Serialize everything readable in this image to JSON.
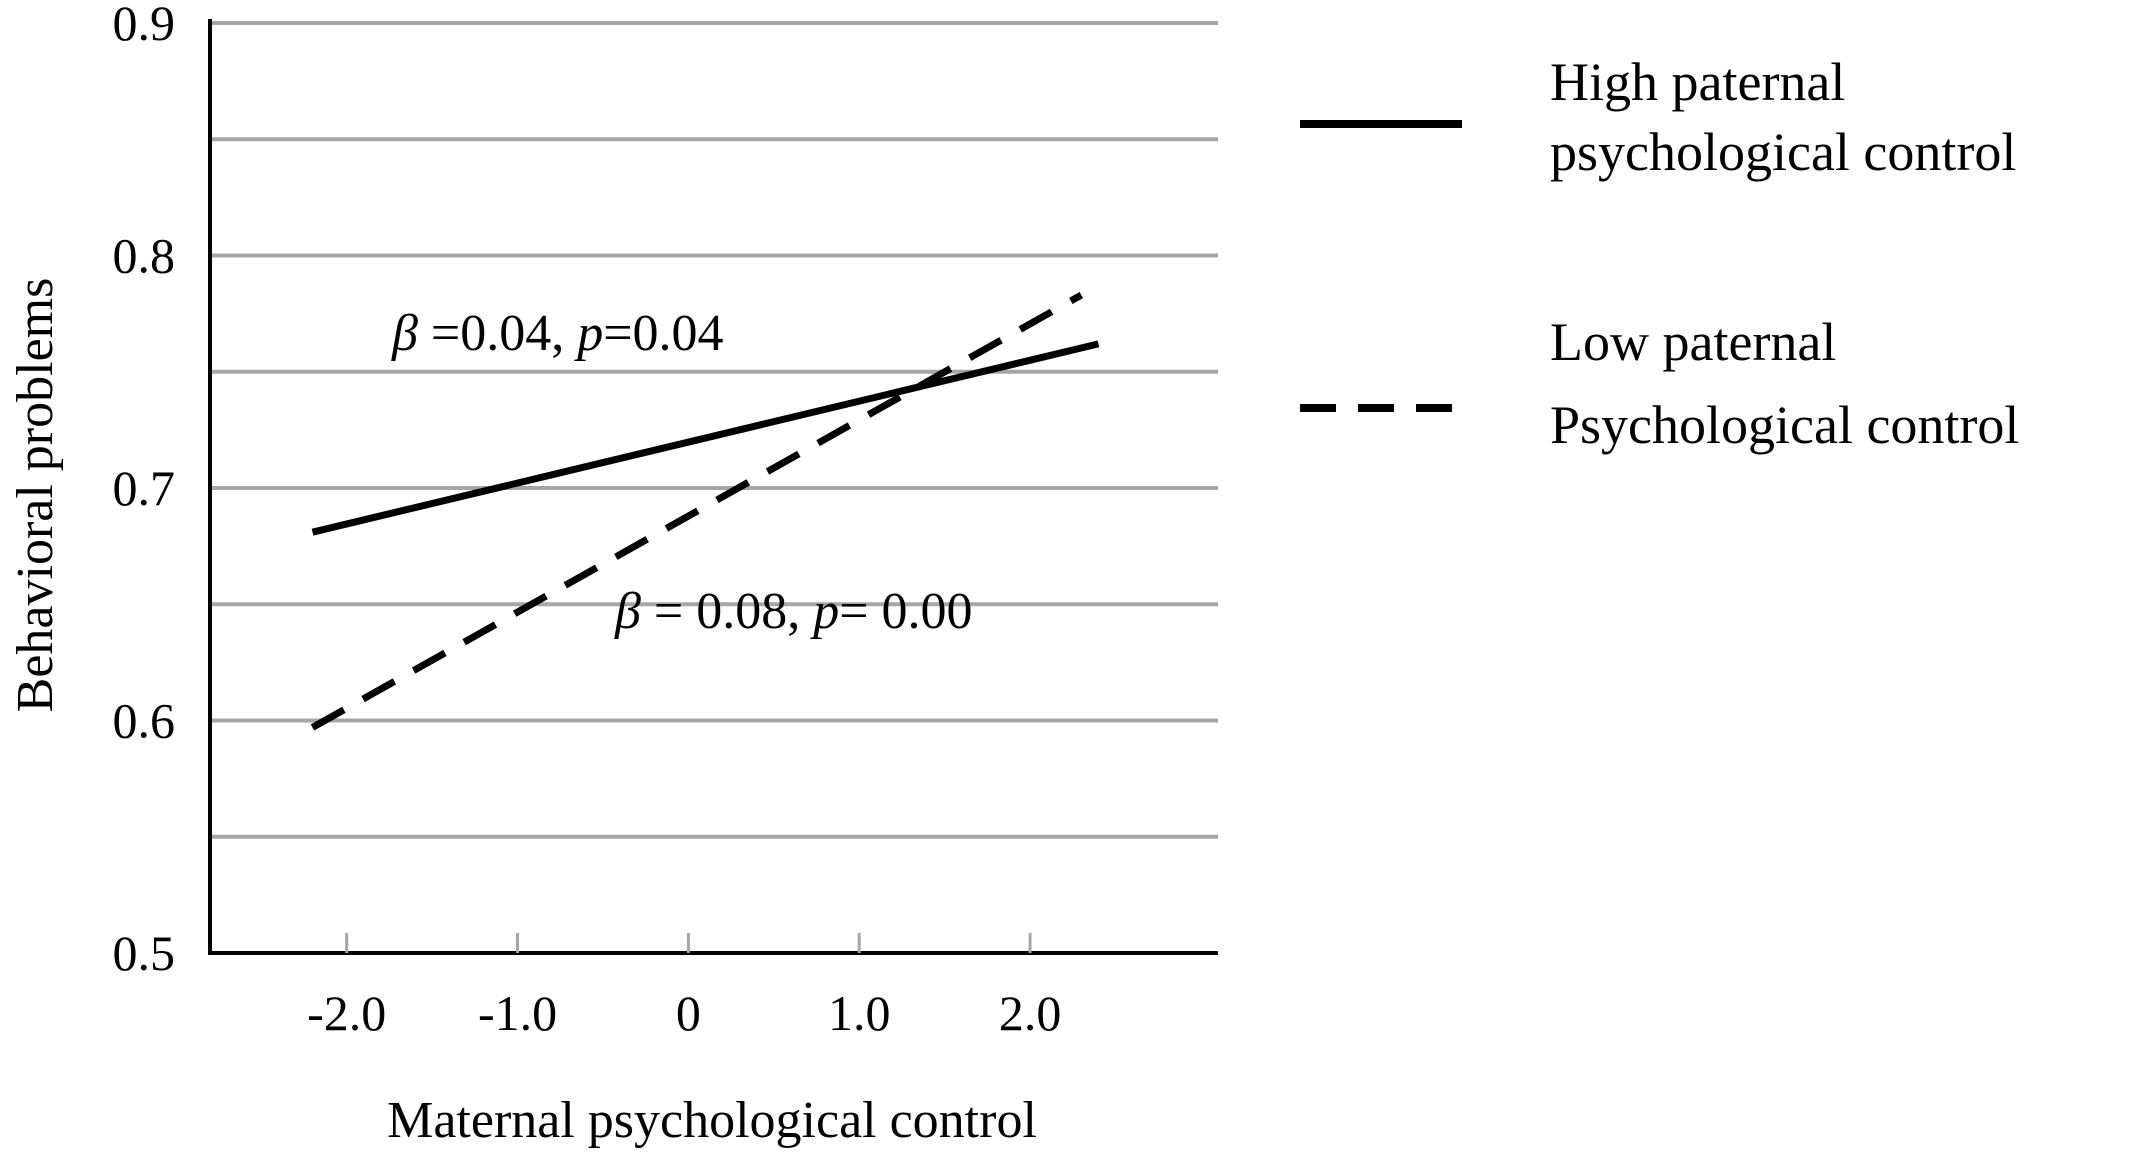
{
  "chart_data": {
    "type": "line",
    "xlabel": "Maternal psychological control",
    "ylabel": "Behavioral problems",
    "ylim": [
      0.5,
      0.9
    ],
    "xlim": [
      -2.8,
      3.1
    ],
    "y_ticks": [
      "0.5",
      "0.6",
      "0.7",
      "0.8",
      "0.9"
    ],
    "y_tick_values": [
      0.5,
      0.6,
      0.7,
      0.8,
      0.9
    ],
    "x_ticks": [
      "-2.0",
      "-1.0",
      "0",
      "1.0",
      "2.0"
    ],
    "x_tick_values": [
      -2.0,
      -1.0,
      0,
      1.0,
      2.0
    ],
    "gridlines_y": [
      0.55,
      0.6,
      0.65,
      0.7,
      0.75,
      0.8,
      0.85,
      0.9
    ],
    "grid": true,
    "legend_position": "right",
    "series": [
      {
        "name": "High paternal psychological control",
        "legend_lines": [
          "High paternal",
          "psychological control"
        ],
        "style": "solid",
        "color": "#000000",
        "x": [
          -2.2,
          2.4
        ],
        "y": [
          0.681,
          0.762
        ],
        "annotation": {
          "beta_symbol": "β",
          "beta_value": " =0.04, ",
          "p_symbol": "p",
          "p_value": "=0.04"
        }
      },
      {
        "name": "Low paternal Psychological control",
        "legend_lines": [
          "Low paternal",
          "Psychological control"
        ],
        "style": "dashed",
        "color": "#000000",
        "x": [
          -2.2,
          2.3
        ],
        "y": [
          0.597,
          0.783
        ],
        "annotation": {
          "beta_symbol": "β",
          "beta_value": " = 0.08, ",
          "p_symbol": "p",
          "p_value": "= 0.00"
        }
      }
    ],
    "colors": {
      "grid": "#a6a6a6",
      "axis": "#000000",
      "line": "#000000"
    }
  }
}
